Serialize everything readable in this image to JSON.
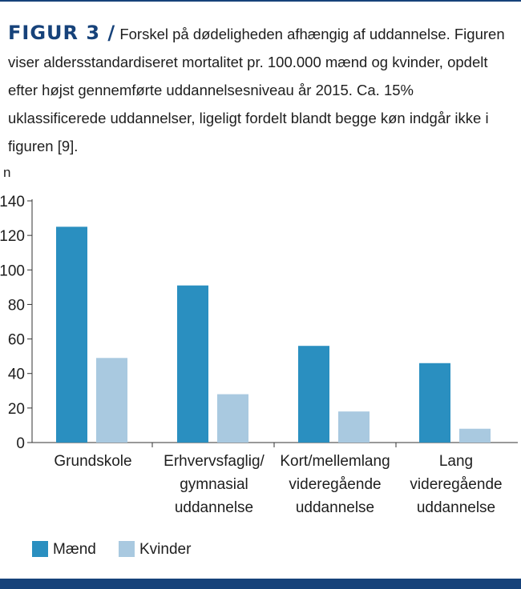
{
  "caption": {
    "figure_label": "FIGUR 3 /",
    "text": "Forskel på dødeligheden afhængig af uddannelse. Figuren viser aldersstandardiseret mortalitet pr. 100.000 mænd og kvinder, opdelt efter højst gennemførte uddannelsesniveau år 2015. Ca. 15% uklassificerede uddannelser, ligeligt fordelt blandt begge køn indgår ikke i figuren [9]."
  },
  "chart_data": {
    "type": "bar",
    "ylabel": "n",
    "xlabel": "",
    "ylim": [
      0,
      140
    ],
    "yticks": [
      0,
      20,
      40,
      60,
      80,
      100,
      120,
      140
    ],
    "grid": false,
    "legend_position": "bottom-left",
    "categories": [
      [
        "Grundskole"
      ],
      [
        "Erhvervsfaglig/",
        "gymnasial",
        "uddannelse"
      ],
      [
        "Kort/mellemlang",
        "videregående",
        "uddannelse"
      ],
      [
        "Lang",
        "videregående",
        "uddannelse"
      ]
    ],
    "series": [
      {
        "name": "Mænd",
        "color": "#2a8fc0",
        "values": [
          125,
          91,
          56,
          46
        ]
      },
      {
        "name": "Kvinder",
        "color": "#a9c9e0",
        "values": [
          49,
          28,
          18,
          8
        ]
      }
    ]
  }
}
